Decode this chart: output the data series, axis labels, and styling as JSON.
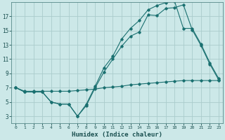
{
  "xlabel": "Humidex (Indice chaleur)",
  "bg_color": "#cce8e8",
  "grid_color": "#aacccc",
  "line_color": "#1a7070",
  "x_values": [
    0,
    1,
    2,
    3,
    4,
    5,
    6,
    7,
    8,
    9,
    10,
    11,
    12,
    13,
    14,
    15,
    16,
    17,
    18,
    19,
    20,
    21,
    22,
    23
  ],
  "line1": [
    7.0,
    6.4,
    6.4,
    6.4,
    5.0,
    4.7,
    4.7,
    3.0,
    4.5,
    7.0,
    9.2,
    11.0,
    12.8,
    14.2,
    14.8,
    17.2,
    17.1,
    18.1,
    18.2,
    18.6,
    15.1,
    12.9,
    10.3,
    8.1
  ],
  "line2": [
    7.0,
    6.4,
    6.4,
    6.4,
    5.0,
    4.7,
    4.7,
    3.0,
    4.7,
    7.2,
    9.8,
    11.4,
    13.8,
    15.3,
    16.4,
    17.9,
    18.5,
    18.9,
    19.1,
    15.3,
    15.3,
    13.1,
    10.5,
    8.3
  ],
  "line3": [
    7.0,
    6.5,
    6.5,
    6.5,
    6.5,
    6.5,
    6.5,
    6.6,
    6.7,
    6.8,
    7.0,
    7.1,
    7.2,
    7.4,
    7.5,
    7.6,
    7.7,
    7.8,
    7.9,
    8.0,
    8.0,
    8.0,
    8.0,
    8.0
  ],
  "ylim": [
    2,
    19
  ],
  "yticks": [
    3,
    5,
    7,
    9,
    11,
    13,
    15,
    17
  ],
  "xlim": [
    -0.5,
    23.5
  ]
}
